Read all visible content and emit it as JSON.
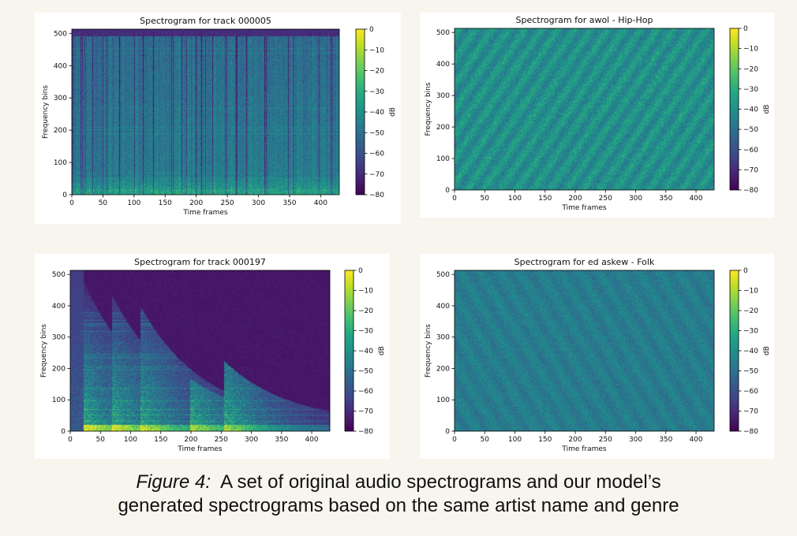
{
  "charts": [
    {
      "type": "heatmap",
      "title": "Spectrogram for track 000005",
      "xlabel": "Time frames",
      "ylabel": "Frequency bins",
      "x_ticks": [
        0,
        50,
        100,
        150,
        200,
        250,
        300,
        350,
        400
      ],
      "y_ticks": [
        0,
        100,
        200,
        300,
        400,
        500
      ],
      "xlim": [
        0,
        430
      ],
      "ylim": [
        0,
        513
      ],
      "colorbar": {
        "label": "dB",
        "ticks": [
          0,
          -10,
          -20,
          -30,
          -40,
          -50,
          -60,
          -70,
          -80
        ],
        "range": [
          -80,
          0
        ]
      },
      "pattern": "music",
      "seed": 11
    },
    {
      "type": "heatmap",
      "title": "Spectrogram for awol - Hip-Hop",
      "xlabel": "Time frames",
      "ylabel": "Frequency bins",
      "x_ticks": [
        0,
        50,
        100,
        150,
        200,
        250,
        300,
        350,
        400
      ],
      "y_ticks": [
        0,
        100,
        200,
        300,
        400,
        500
      ],
      "xlim": [
        0,
        430
      ],
      "ylim": [
        0,
        513
      ],
      "colorbar": {
        "label": "dB",
        "ticks": [
          0,
          -10,
          -20,
          -30,
          -40,
          -50,
          -60,
          -70,
          -80
        ],
        "range": [
          -80,
          0
        ]
      },
      "pattern": "noise-bright",
      "seed": 23
    },
    {
      "type": "heatmap",
      "title": "Spectrogram for track 000197",
      "xlabel": "Time frames",
      "ylabel": "Frequency bins",
      "x_ticks": [
        0,
        50,
        100,
        150,
        200,
        250,
        300,
        350,
        400
      ],
      "y_ticks": [
        0,
        100,
        200,
        300,
        400,
        500
      ],
      "xlim": [
        0,
        430
      ],
      "ylim": [
        0,
        513
      ],
      "colorbar": {
        "label": "dB",
        "ticks": [
          0,
          -10,
          -20,
          -30,
          -40,
          -50,
          -60,
          -70,
          -80
        ],
        "range": [
          -80,
          0
        ]
      },
      "pattern": "sparse",
      "seed": 37
    },
    {
      "type": "heatmap",
      "title": "Spectrogram for ed askew - Folk",
      "xlabel": "Time frames",
      "ylabel": "Frequency bins",
      "x_ticks": [
        0,
        50,
        100,
        150,
        200,
        250,
        300,
        350,
        400
      ],
      "y_ticks": [
        0,
        100,
        200,
        300,
        400,
        500
      ],
      "xlim": [
        0,
        430
      ],
      "ylim": [
        0,
        513
      ],
      "colorbar": {
        "label": "dB",
        "ticks": [
          0,
          -10,
          -20,
          -30,
          -40,
          -50,
          -60,
          -70,
          -80
        ],
        "range": [
          -80,
          0
        ]
      },
      "pattern": "noise-dim",
      "seed": 41
    }
  ],
  "caption": {
    "label": "Figure 4:",
    "line1": "A set of original audio spectrograms and our model’s",
    "line2": "generated spectrograms based on the same artist name and genre"
  }
}
